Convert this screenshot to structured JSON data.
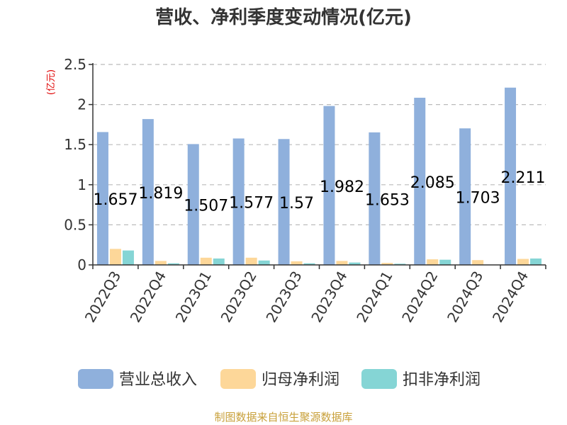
{
  "title": "营收、净利季度变动情况(亿元)",
  "source": "制图数据来自恒生聚源数据库",
  "colors": {
    "revenue": "#8fb0dc",
    "net_profit": "#fdd799",
    "deducted_profit": "#85d5d5",
    "grid": "#bbbbbb",
    "axis": "#333333"
  },
  "chart_data": {
    "type": "bar",
    "title": "营收、净利季度变动情况(亿元)",
    "ylabel": "(亿元)",
    "xlabel": "",
    "ylim": [
      0,
      2.5
    ],
    "yticks": [
      "0",
      "0.5",
      "1",
      "1.5",
      "2",
      "2.5"
    ],
    "categories": [
      "2022Q3",
      "2022Q4",
      "2023Q1",
      "2023Q2",
      "2023Q3",
      "2023Q4",
      "2024Q1",
      "2024Q2",
      "2024Q3",
      "2024Q4"
    ],
    "grid": true,
    "legend_position": "bottom",
    "series": [
      {
        "name": "营业总收入",
        "values": [
          1.657,
          1.819,
          1.507,
          1.577,
          1.57,
          1.982,
          1.653,
          2.085,
          1.703,
          2.211
        ],
        "labels": [
          "1.657",
          "1.819",
          "1.507",
          "1.577",
          "1.57",
          "1.982",
          "1.653",
          "2.085",
          "1.703",
          "2.211"
        ]
      },
      {
        "name": "归母净利润",
        "values": [
          0.2,
          0.05,
          0.09,
          0.09,
          0.045,
          0.05,
          0.025,
          0.07,
          0.06,
          0.075
        ]
      },
      {
        "name": "扣非净利润",
        "values": [
          0.18,
          0.02,
          0.08,
          0.055,
          0.02,
          0.03,
          0.015,
          0.065,
          0.0,
          0.08
        ]
      }
    ]
  }
}
